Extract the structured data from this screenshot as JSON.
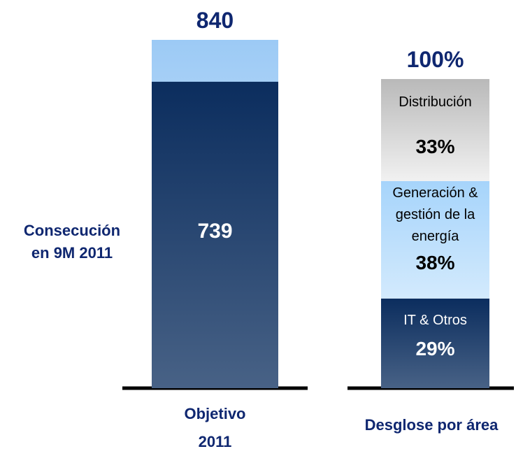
{
  "chart_data": [
    {
      "type": "bar",
      "categories": [
        "Objetivo 2011"
      ],
      "totals": [
        840
      ],
      "total_color": "#9ccaf5",
      "series": [
        {
          "name": "Consecución en 9M 2011",
          "color": "#0b2d5e",
          "values": [
            739
          ]
        }
      ],
      "ylim": [
        0,
        840
      ]
    },
    {
      "type": "stacked_bar",
      "title": "100%",
      "categories": [
        "Desglose por área"
      ],
      "series": [
        {
          "name": "IT & Otros",
          "color": "#0b2d5e",
          "values": [
            29
          ],
          "value_labels": [
            "29%"
          ]
        },
        {
          "name": "Generación & gestión de la energía",
          "color": "#a6d4fb",
          "values": [
            38
          ],
          "value_labels": [
            "38%"
          ]
        },
        {
          "name": "Distribución",
          "color": "#b9b9b9",
          "values": [
            33
          ],
          "value_labels": [
            "33%"
          ]
        }
      ],
      "ylim": [
        0,
        100
      ]
    }
  ]
}
